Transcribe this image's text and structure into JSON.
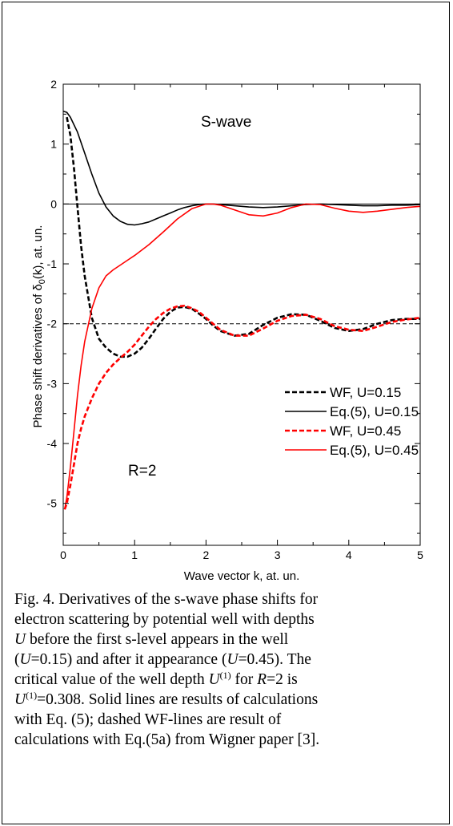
{
  "chart_data": {
    "type": "line",
    "xlabel": "Wave vector k, at. un.",
    "ylabel_prefix": "Phase shift derivatives of δ",
    "ylabel_sub": "0",
    "ylabel_suffix": "(k), at. un.",
    "xlim": [
      0,
      5
    ],
    "ylim": [
      -5.7,
      2
    ],
    "xticks": [
      "0",
      "1",
      "2",
      "3",
      "4",
      "5"
    ],
    "yticks": [
      "2",
      "1",
      "0",
      "-1",
      "-2",
      "-3",
      "-4",
      "-5"
    ],
    "annotations": {
      "wave": "S-wave",
      "radius": "R=2"
    },
    "reference_lines": [
      {
        "y": 0,
        "style": "solid",
        "color": "#000000"
      },
      {
        "y": -2,
        "style": "dashed",
        "color": "#000000"
      }
    ],
    "legend_position": "lower-right",
    "series": [
      {
        "name": "WF, U=0.15",
        "color": "#000000",
        "dash": true,
        "x": [
          0.05,
          0.1,
          0.15,
          0.2,
          0.25,
          0.3,
          0.4,
          0.5,
          0.6,
          0.7,
          0.8,
          0.9,
          1.0,
          1.1,
          1.2,
          1.3,
          1.4,
          1.5,
          1.6,
          1.7,
          1.8,
          1.9,
          2.0,
          2.1,
          2.2,
          2.4,
          2.6,
          2.8,
          3.0,
          3.2,
          3.4,
          3.6,
          3.8,
          4.0,
          4.2,
          4.4,
          4.6,
          4.8,
          5.0
        ],
        "y": [
          1.45,
          1.15,
          0.6,
          -0.05,
          -0.7,
          -1.2,
          -1.9,
          -2.25,
          -2.4,
          -2.5,
          -2.55,
          -2.55,
          -2.5,
          -2.4,
          -2.25,
          -2.08,
          -1.92,
          -1.8,
          -1.73,
          -1.72,
          -1.75,
          -1.83,
          -1.92,
          -2.03,
          -2.12,
          -2.2,
          -2.17,
          -2.02,
          -1.9,
          -1.84,
          -1.85,
          -1.95,
          -2.07,
          -2.12,
          -2.09,
          -2.0,
          -1.94,
          -1.92,
          -1.92
        ]
      },
      {
        "name": "Eq.(5), U=0.15",
        "color": "#000000",
        "dash": false,
        "x": [
          0.0,
          0.05,
          0.1,
          0.2,
          0.3,
          0.4,
          0.5,
          0.6,
          0.7,
          0.8,
          0.9,
          1.0,
          1.1,
          1.2,
          1.3,
          1.4,
          1.5,
          1.6,
          1.7,
          1.8,
          1.9,
          2.0,
          2.1,
          2.2,
          2.4,
          2.6,
          2.8,
          3.0,
          3.2,
          3.4,
          3.6,
          3.8,
          4.0,
          4.2,
          4.4,
          4.6,
          4.8,
          5.0
        ],
        "y": [
          1.55,
          1.53,
          1.45,
          1.2,
          0.85,
          0.5,
          0.18,
          -0.05,
          -0.2,
          -0.29,
          -0.34,
          -0.35,
          -0.33,
          -0.3,
          -0.25,
          -0.2,
          -0.15,
          -0.1,
          -0.06,
          -0.03,
          -0.01,
          0.0,
          0.0,
          -0.01,
          -0.03,
          -0.05,
          -0.06,
          -0.05,
          -0.03,
          -0.01,
          0.0,
          -0.01,
          -0.02,
          -0.03,
          -0.03,
          -0.02,
          -0.02,
          -0.01
        ]
      },
      {
        "name": "WF, U=0.45",
        "color": "#ff0000",
        "dash": true,
        "x": [
          0.02,
          0.05,
          0.1,
          0.15,
          0.2,
          0.25,
          0.3,
          0.4,
          0.5,
          0.6,
          0.7,
          0.8,
          0.9,
          1.0,
          1.1,
          1.2,
          1.3,
          1.4,
          1.5,
          1.6,
          1.7,
          1.8,
          1.9,
          2.0,
          2.1,
          2.2,
          2.4,
          2.6,
          2.8,
          3.0,
          3.2,
          3.4,
          3.6,
          3.8,
          4.0,
          4.2,
          4.4,
          4.6,
          4.8,
          5.0
        ],
        "y": [
          -5.1,
          -5.0,
          -4.7,
          -4.35,
          -4.0,
          -3.75,
          -3.55,
          -3.25,
          -3.0,
          -2.82,
          -2.68,
          -2.57,
          -2.47,
          -2.35,
          -2.2,
          -2.05,
          -1.92,
          -1.82,
          -1.75,
          -1.71,
          -1.7,
          -1.74,
          -1.8,
          -1.9,
          -2.0,
          -2.1,
          -2.2,
          -2.2,
          -2.08,
          -1.95,
          -1.87,
          -1.85,
          -1.92,
          -2.04,
          -2.1,
          -2.12,
          -2.05,
          -1.97,
          -1.93,
          -1.9
        ]
      },
      {
        "name": "Eq.(5), U=0.45",
        "color": "#ff0000",
        "dash": false,
        "x": [
          0.02,
          0.05,
          0.1,
          0.15,
          0.2,
          0.25,
          0.3,
          0.4,
          0.5,
          0.6,
          0.7,
          0.8,
          0.9,
          1.0,
          1.2,
          1.4,
          1.6,
          1.8,
          2.0,
          2.1,
          2.2,
          2.4,
          2.6,
          2.8,
          3.0,
          3.2,
          3.4,
          3.6,
          3.8,
          4.0,
          4.2,
          4.4,
          4.6,
          4.8,
          5.0
        ],
        "y": [
          -5.1,
          -4.9,
          -4.4,
          -3.8,
          -3.2,
          -2.7,
          -2.3,
          -1.75,
          -1.4,
          -1.2,
          -1.1,
          -1.02,
          -0.94,
          -0.86,
          -0.68,
          -0.47,
          -0.25,
          -0.08,
          0.0,
          0.0,
          -0.02,
          -0.1,
          -0.18,
          -0.2,
          -0.15,
          -0.06,
          0.0,
          -0.01,
          -0.07,
          -0.12,
          -0.14,
          -0.12,
          -0.09,
          -0.06,
          -0.04
        ]
      }
    ]
  },
  "caption": {
    "line1": "Fig. 4. Derivatives of the s-wave phase shifts for",
    "line2": "electron scattering by potential well with depths",
    "line3_sym": "U",
    "line3_text": " before the first s-level appears in the well",
    "line4_a": "(",
    "line4_sym": "U",
    "line4_b": "=0.15) and after it appearance (",
    "line4_sym2": "U",
    "line4_c": "=0.45). The",
    "line5_a": "critical value of the well depth ",
    "line5_sym": "U",
    "line5_sup": "(1)",
    "line5_b": " for ",
    "line5_sym2": "R",
    "line5_c": "=2 is",
    "line6_sym": "U",
    "line6_sup": "(1)",
    "line6_text": "=0.308. Solid lines are results of calculations",
    "line7": "with Eq. (5); dashed WF-lines are result of",
    "line8": "calculations with Eq.(5a) from Wigner paper [3]."
  }
}
